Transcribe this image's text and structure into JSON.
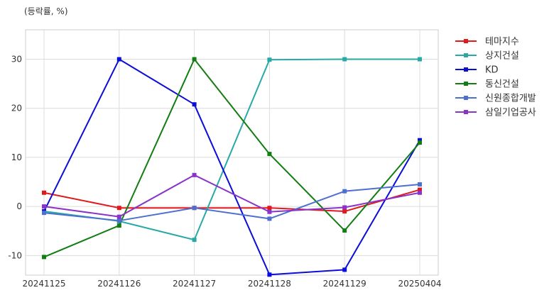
{
  "chart_data": {
    "type": "line",
    "unit_label": "(등락률, %)",
    "categories": [
      "20241125",
      "20241126",
      "20241127",
      "20241128",
      "20241129",
      "20250404"
    ],
    "ylim": [
      -14,
      36
    ],
    "yticks": [
      -10,
      0,
      10,
      20,
      30
    ],
    "grid": true,
    "legend_position": "right",
    "series": [
      {
        "name": "테마지수",
        "color": "#e0191c",
        "values": [
          2.8,
          -0.3,
          -0.3,
          -0.3,
          -1.0,
          3.4
        ]
      },
      {
        "name": "상지건설",
        "color": "#27aaa6",
        "values": [
          -1.0,
          -3.0,
          -6.8,
          29.9,
          30.0,
          30.0
        ]
      },
      {
        "name": "KD",
        "color": "#0b0dd9",
        "values": [
          -1.0,
          30.0,
          20.8,
          -13.9,
          -12.9,
          13.5
        ]
      },
      {
        "name": "동신건설",
        "color": "#127d12",
        "values": [
          -10.3,
          -3.9,
          30.0,
          10.7,
          -4.9,
          13.0
        ]
      },
      {
        "name": "신원종합개발",
        "color": "#4d6fd0",
        "values": [
          -1.3,
          -2.9,
          -0.3,
          -2.5,
          3.1,
          4.5
        ]
      },
      {
        "name": "삼일기업공사",
        "color": "#8a33c9",
        "values": [
          0.0,
          -2.1,
          6.4,
          -1.1,
          -0.2,
          2.8
        ]
      }
    ]
  }
}
